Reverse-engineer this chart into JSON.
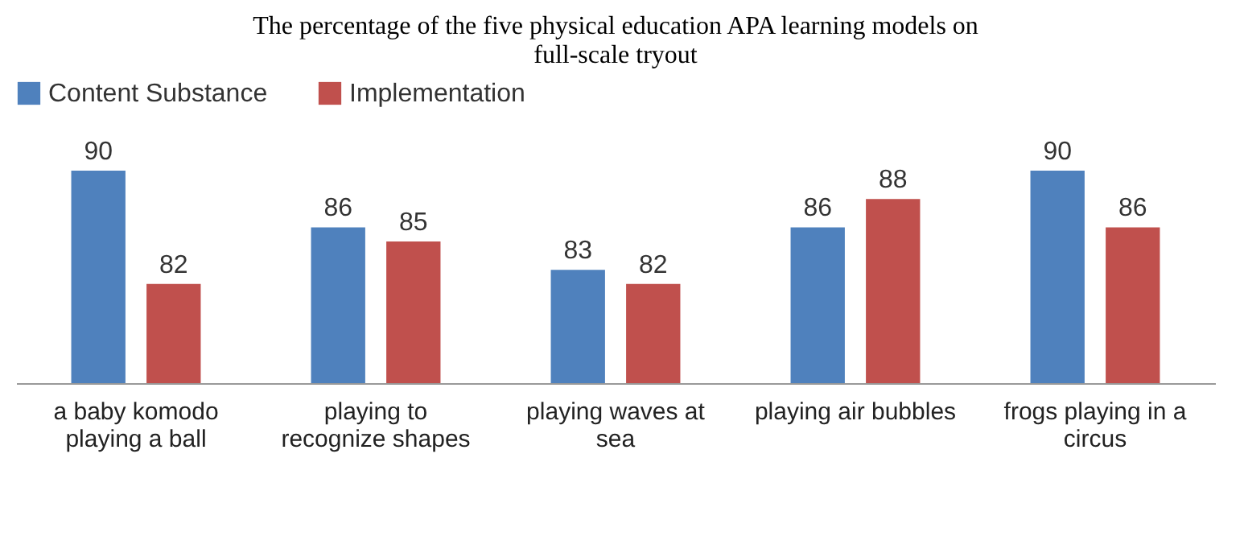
{
  "chart_data": {
    "type": "bar",
    "title": "The percentage of the five physical education APA learning models on full-scale tryout",
    "categories": [
      "a baby komodo playing a ball",
      "playing to recognize shapes",
      "playing waves at sea",
      "playing air bubbles",
      "frogs playing in a circus"
    ],
    "series": [
      {
        "name": "Content Substance",
        "color": "#4f81bd",
        "values": [
          90,
          86,
          83,
          86,
          90
        ]
      },
      {
        "name": "Implementation",
        "color": "#c0504d",
        "values": [
          82,
          85,
          82,
          88,
          86
        ]
      }
    ],
    "ylim": [
      75,
      90
    ],
    "data_labels": true,
    "legend": "top",
    "tick_labels": "x"
  }
}
